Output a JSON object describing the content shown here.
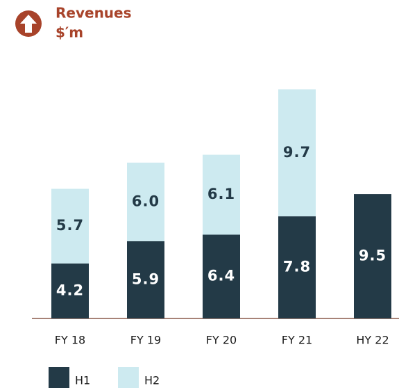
{
  "chart_data": {
    "type": "stacked_bar",
    "title": "Revenues",
    "subtitle": "$′m",
    "categories": [
      "FY 18",
      "FY 19",
      "FY 20",
      "FY 21",
      "HY 22"
    ],
    "series": [
      {
        "name": "H1",
        "color": "#233a47",
        "values": [
          4.2,
          5.9,
          6.4,
          7.8,
          9.5
        ]
      },
      {
        "name": "H2",
        "color": "#cdeaf0",
        "values": [
          5.7,
          6.0,
          6.1,
          9.7,
          null
        ],
        "value_labels": [
          "5.7",
          "6.0",
          "6.1",
          "9.7",
          null
        ]
      }
    ],
    "ylim": [
      0,
      18
    ]
  }
}
